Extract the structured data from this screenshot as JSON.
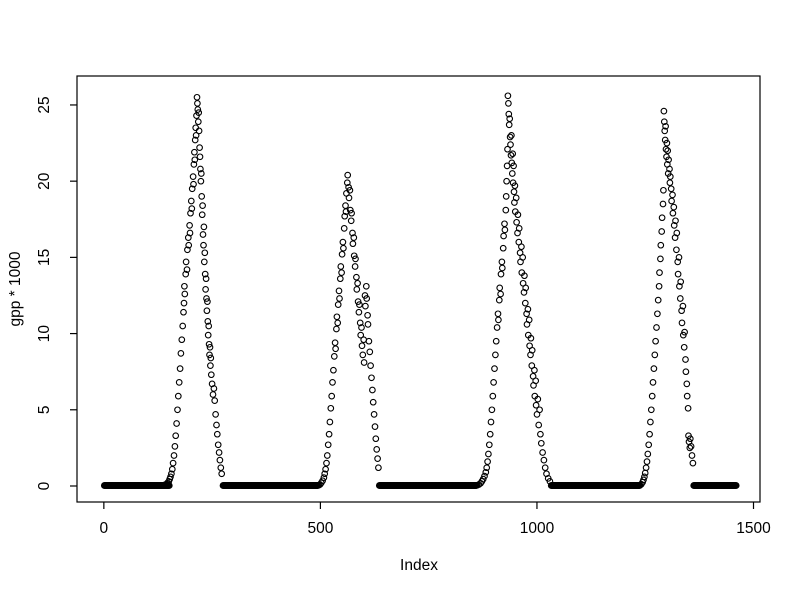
{
  "figure": {
    "background": "#ffffff",
    "foreground": "#000000"
  },
  "chart_data": {
    "type": "scatter",
    "title": "",
    "xlabel": "Index",
    "ylabel": "gpp * 1000",
    "x_ticks": [
      0,
      500,
      1000,
      1500
    ],
    "y_ticks": [
      0,
      5,
      10,
      15,
      20,
      25
    ],
    "xlim": [
      -62,
      1515
    ],
    "ylim": [
      -1.05,
      26.9
    ],
    "grid": false,
    "legend": null,
    "marker": {
      "shape": "open-circle",
      "color": "#000000",
      "radius_px": 2.8,
      "stroke_px": 1.1
    },
    "n_points_approx": 1460,
    "description": "Daily GPP*1000 over ~4 seasonal cycles; long runs of zeros between growing-season peaks near x=215, 560, 935, 1295",
    "zero_value": 0.03,
    "zero_runs": [
      [
        1,
        151
      ],
      [
        275,
        494
      ],
      [
        636,
        860
      ],
      [
        1033,
        1237
      ],
      [
        1362,
        1460
      ]
    ],
    "points": [
      [
        138,
        0.05
      ],
      [
        141,
        0.08
      ],
      [
        144,
        0.12
      ],
      [
        147,
        0.2
      ],
      [
        150,
        0.3
      ],
      [
        152,
        0.45
      ],
      [
        154,
        0.6
      ],
      [
        156,
        0.8
      ],
      [
        158,
        1.1
      ],
      [
        160,
        1.5
      ],
      [
        162,
        2
      ],
      [
        164,
        2.6
      ],
      [
        166,
        3.3
      ],
      [
        168,
        4.1
      ],
      [
        170,
        5
      ],
      [
        172,
        5.9
      ],
      [
        174,
        6.8
      ],
      [
        176,
        7.7
      ],
      [
        178,
        8.7
      ],
      [
        180,
        9.6
      ],
      [
        182,
        10.5
      ],
      [
        184,
        11.4
      ],
      [
        185,
        12
      ],
      [
        186,
        13.1
      ],
      [
        187,
        12.6
      ],
      [
        189,
        13.9
      ],
      [
        190,
        14.7
      ],
      [
        192,
        14.2
      ],
      [
        193,
        15.5
      ],
      [
        195,
        16.3
      ],
      [
        196,
        15.8
      ],
      [
        198,
        17.1
      ],
      [
        199,
        16.6
      ],
      [
        200,
        17.9
      ],
      [
        202,
        18.7
      ],
      [
        203,
        18.2
      ],
      [
        204,
        19.5
      ],
      [
        206,
        20.3
      ],
      [
        207,
        19.8
      ],
      [
        208,
        21.1
      ],
      [
        209,
        21.9
      ],
      [
        210,
        21.4
      ],
      [
        211,
        22.7
      ],
      [
        212,
        23.5
      ],
      [
        213,
        23
      ],
      [
        214,
        24.3
      ],
      [
        215,
        25.5
      ],
      [
        216,
        25.1
      ],
      [
        217,
        24.7
      ],
      [
        218,
        23.9
      ],
      [
        219,
        24.5
      ],
      [
        220,
        23.3
      ],
      [
        221,
        22.2
      ],
      [
        222,
        21.6
      ],
      [
        223,
        20.8
      ],
      [
        224,
        20
      ],
      [
        225,
        20.5
      ],
      [
        226,
        19
      ],
      [
        227,
        17.8
      ],
      [
        228,
        18.4
      ],
      [
        229,
        16.5
      ],
      [
        230,
        15.8
      ],
      [
        231,
        17
      ],
      [
        232,
        14.7
      ],
      [
        233,
        15.3
      ],
      [
        234,
        13.9
      ],
      [
        235,
        12.9
      ],
      [
        236,
        13.6
      ],
      [
        237,
        12.3
      ],
      [
        238,
        11.5
      ],
      [
        239,
        12.1
      ],
      [
        240,
        10.8
      ],
      [
        241,
        9.9
      ],
      [
        242,
        10.5
      ],
      [
        243,
        9.3
      ],
      [
        244,
        8.6
      ],
      [
        245,
        9.1
      ],
      [
        246,
        7.9
      ],
      [
        247,
        8.4
      ],
      [
        248,
        7.3
      ],
      [
        250,
        6.7
      ],
      [
        252,
        6
      ],
      [
        254,
        6.4
      ],
      [
        256,
        5.6
      ],
      [
        258,
        4.7
      ],
      [
        260,
        4
      ],
      [
        262,
        3.4
      ],
      [
        264,
        2.7
      ],
      [
        266,
        2.2
      ],
      [
        268,
        1.7
      ],
      [
        270,
        1.2
      ],
      [
        272,
        0.8
      ],
      [
        496,
        0.05
      ],
      [
        499,
        0.1
      ],
      [
        502,
        0.2
      ],
      [
        505,
        0.35
      ],
      [
        508,
        0.55
      ],
      [
        510,
        0.8
      ],
      [
        512,
        1.1
      ],
      [
        514,
        1.5
      ],
      [
        516,
        2
      ],
      [
        518,
        2.7
      ],
      [
        520,
        3.4
      ],
      [
        522,
        4.2
      ],
      [
        524,
        5.1
      ],
      [
        526,
        5.9
      ],
      [
        528,
        6.8
      ],
      [
        530,
        7.6
      ],
      [
        532,
        8.5
      ],
      [
        534,
        9.4
      ],
      [
        535,
        9
      ],
      [
        537,
        10.3
      ],
      [
        538,
        11.1
      ],
      [
        540,
        10.7
      ],
      [
        541,
        11.9
      ],
      [
        543,
        12.8
      ],
      [
        544,
        12.3
      ],
      [
        546,
        13.6
      ],
      [
        547,
        14.4
      ],
      [
        549,
        14
      ],
      [
        550,
        15.2
      ],
      [
        552,
        16
      ],
      [
        553,
        15.6
      ],
      [
        555,
        16.9
      ],
      [
        556,
        17.7
      ],
      [
        558,
        18.4
      ],
      [
        559,
        18
      ],
      [
        560,
        19.2
      ],
      [
        562,
        19.9
      ],
      [
        563,
        20.4
      ],
      [
        565,
        19.6
      ],
      [
        566,
        18.9
      ],
      [
        568,
        19.4
      ],
      [
        569,
        18.1
      ],
      [
        571,
        17.4
      ],
      [
        572,
        17.9
      ],
      [
        574,
        16.6
      ],
      [
        575,
        15.9
      ],
      [
        577,
        16.3
      ],
      [
        578,
        15.1
      ],
      [
        580,
        14.4
      ],
      [
        581,
        14.9
      ],
      [
        583,
        13.7
      ],
      [
        584,
        12.9
      ],
      [
        586,
        13.3
      ],
      [
        587,
        12.1
      ],
      [
        589,
        11.4
      ],
      [
        590,
        11.9
      ],
      [
        592,
        10.7
      ],
      [
        593,
        9.9
      ],
      [
        595,
        10.4
      ],
      [
        596,
        9.2
      ],
      [
        598,
        8.6
      ],
      [
        600,
        9.6
      ],
      [
        601,
        8.1
      ],
      [
        603,
        12.5
      ],
      [
        604,
        11.8
      ],
      [
        606,
        13.1
      ],
      [
        607,
        12.3
      ],
      [
        609,
        11.2
      ],
      [
        610,
        10.6
      ],
      [
        612,
        9.5
      ],
      [
        614,
        8.8
      ],
      [
        616,
        7.9
      ],
      [
        618,
        7.1
      ],
      [
        620,
        6.3
      ],
      [
        622,
        5.5
      ],
      [
        624,
        4.7
      ],
      [
        626,
        3.9
      ],
      [
        628,
        3.1
      ],
      [
        630,
        2.4
      ],
      [
        632,
        1.8
      ],
      [
        634,
        1.2
      ],
      [
        862,
        0.05
      ],
      [
        866,
        0.1
      ],
      [
        870,
        0.18
      ],
      [
        873,
        0.3
      ],
      [
        876,
        0.45
      ],
      [
        879,
        0.65
      ],
      [
        882,
        0.9
      ],
      [
        884,
        1.2
      ],
      [
        886,
        1.6
      ],
      [
        888,
        2.1
      ],
      [
        890,
        2.7
      ],
      [
        892,
        3.4
      ],
      [
        894,
        4.2
      ],
      [
        896,
        5
      ],
      [
        898,
        5.9
      ],
      [
        900,
        6.8
      ],
      [
        902,
        7.7
      ],
      [
        904,
        8.6
      ],
      [
        906,
        9.5
      ],
      [
        908,
        10.4
      ],
      [
        910,
        11.3
      ],
      [
        911,
        10.9
      ],
      [
        913,
        12.2
      ],
      [
        914,
        13
      ],
      [
        916,
        12.6
      ],
      [
        917,
        13.9
      ],
      [
        919,
        14.7
      ],
      [
        920,
        14.3
      ],
      [
        922,
        15.6
      ],
      [
        923,
        16.4
      ],
      [
        925,
        17.2
      ],
      [
        926,
        16.8
      ],
      [
        928,
        18.1
      ],
      [
        929,
        19
      ],
      [
        930,
        20
      ],
      [
        931,
        21
      ],
      [
        932,
        22.1
      ],
      [
        933,
        25.6
      ],
      [
        934,
        25.1
      ],
      [
        935,
        24.4
      ],
      [
        936,
        23.7
      ],
      [
        937,
        24.1
      ],
      [
        938,
        22.9
      ],
      [
        939,
        22.4
      ],
      [
        940,
        21.7
      ],
      [
        941,
        23
      ],
      [
        942,
        21.2
      ],
      [
        943,
        20.5
      ],
      [
        944,
        21.8
      ],
      [
        945,
        19.9
      ],
      [
        946,
        21
      ],
      [
        947,
        19.3
      ],
      [
        948,
        18.6
      ],
      [
        949,
        19.7
      ],
      [
        950,
        18
      ],
      [
        952,
        18.9
      ],
      [
        953,
        17.3
      ],
      [
        955,
        16.6
      ],
      [
        956,
        17.8
      ],
      [
        958,
        16
      ],
      [
        959,
        16.9
      ],
      [
        961,
        15.3
      ],
      [
        962,
        14.7
      ],
      [
        964,
        15.7
      ],
      [
        965,
        14
      ],
      [
        967,
        15
      ],
      [
        968,
        13.3
      ],
      [
        970,
        12.7
      ],
      [
        971,
        13.8
      ],
      [
        973,
        12
      ],
      [
        974,
        13
      ],
      [
        976,
        11.3
      ],
      [
        977,
        10.6
      ],
      [
        979,
        11.6
      ],
      [
        980,
        9.9
      ],
      [
        982,
        10.9
      ],
      [
        983,
        9.2
      ],
      [
        985,
        8.6
      ],
      [
        986,
        9.7
      ],
      [
        988,
        7.9
      ],
      [
        989,
        8.9
      ],
      [
        991,
        7.2
      ],
      [
        992,
        6.6
      ],
      [
        994,
        7.6
      ],
      [
        995,
        5.9
      ],
      [
        997,
        6.9
      ],
      [
        998,
        5.3
      ],
      [
        1000,
        4.7
      ],
      [
        1002,
        5.7
      ],
      [
        1004,
        4
      ],
      [
        1006,
        5
      ],
      [
        1008,
        3.4
      ],
      [
        1010,
        2.8
      ],
      [
        1013,
        2.2
      ],
      [
        1016,
        1.7
      ],
      [
        1019,
        1.2
      ],
      [
        1022,
        0.8
      ],
      [
        1026,
        0.5
      ],
      [
        1030,
        0.3
      ],
      [
        1238,
        0.05
      ],
      [
        1241,
        0.12
      ],
      [
        1244,
        0.25
      ],
      [
        1246,
        0.4
      ],
      [
        1248,
        0.6
      ],
      [
        1250,
        0.85
      ],
      [
        1252,
        1.2
      ],
      [
        1254,
        1.6
      ],
      [
        1256,
        2.1
      ],
      [
        1258,
        2.7
      ],
      [
        1260,
        3.4
      ],
      [
        1262,
        4.2
      ],
      [
        1264,
        5
      ],
      [
        1266,
        5.9
      ],
      [
        1268,
        6.8
      ],
      [
        1270,
        7.7
      ],
      [
        1272,
        8.6
      ],
      [
        1274,
        9.5
      ],
      [
        1276,
        10.4
      ],
      [
        1278,
        11.3
      ],
      [
        1280,
        12.2
      ],
      [
        1282,
        13.1
      ],
      [
        1283,
        14
      ],
      [
        1285,
        14.9
      ],
      [
        1286,
        15.8
      ],
      [
        1288,
        16.7
      ],
      [
        1289,
        17.6
      ],
      [
        1291,
        18.5
      ],
      [
        1292,
        19.4
      ],
      [
        1293,
        24.6
      ],
      [
        1294,
        23.9
      ],
      [
        1295,
        23.3
      ],
      [
        1296,
        22.7
      ],
      [
        1297,
        23.6
      ],
      [
        1298,
        22.1
      ],
      [
        1299,
        21.6
      ],
      [
        1300,
        22.5
      ],
      [
        1301,
        21.1
      ],
      [
        1302,
        22
      ],
      [
        1303,
        20.5
      ],
      [
        1304,
        21.4
      ],
      [
        1306,
        20.8
      ],
      [
        1307,
        19.9
      ],
      [
        1308,
        20.3
      ],
      [
        1310,
        19.5
      ],
      [
        1311,
        18.7
      ],
      [
        1313,
        19.1
      ],
      [
        1314,
        17.9
      ],
      [
        1316,
        18.3
      ],
      [
        1317,
        17.1
      ],
      [
        1319,
        16.3
      ],
      [
        1320,
        17.4
      ],
      [
        1322,
        15.5
      ],
      [
        1323,
        16.6
      ],
      [
        1325,
        14.7
      ],
      [
        1326,
        13.9
      ],
      [
        1328,
        15
      ],
      [
        1329,
        13.1
      ],
      [
        1331,
        12.3
      ],
      [
        1332,
        13.4
      ],
      [
        1334,
        11.5
      ],
      [
        1335,
        10.7
      ],
      [
        1337,
        11.8
      ],
      [
        1338,
        9.9
      ],
      [
        1340,
        9.1
      ],
      [
        1341,
        10.1
      ],
      [
        1343,
        8.3
      ],
      [
        1344,
        7.5
      ],
      [
        1346,
        6.7
      ],
      [
        1347,
        5.9
      ],
      [
        1349,
        5.1
      ],
      [
        1350,
        3.3
      ],
      [
        1351,
        2.9
      ],
      [
        1353,
        2.5
      ],
      [
        1354,
        3.1
      ],
      [
        1356,
        2.6
      ],
      [
        1358,
        2
      ],
      [
        1360,
        1.5
      ]
    ]
  }
}
